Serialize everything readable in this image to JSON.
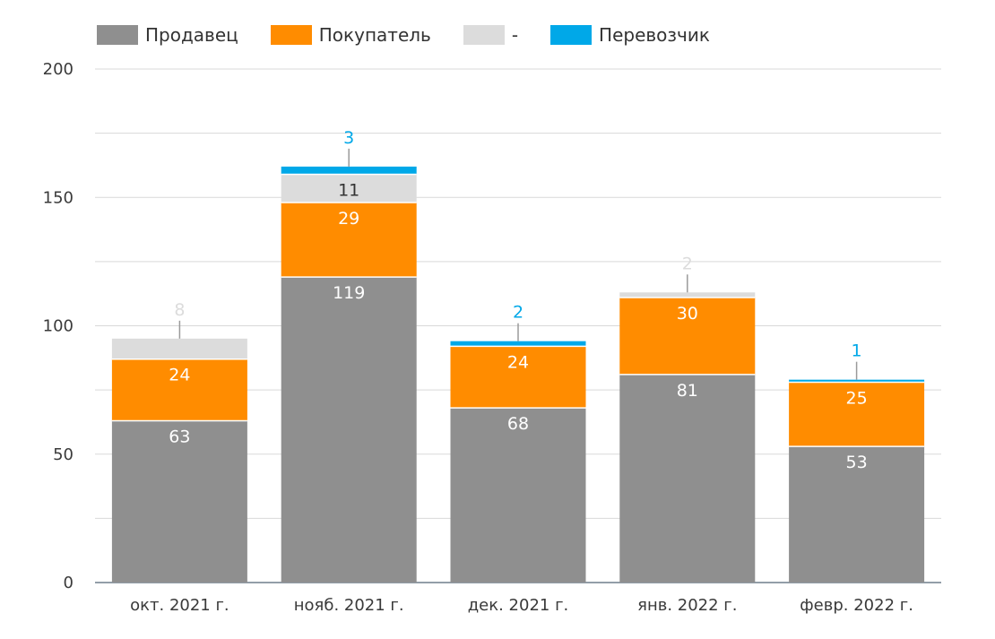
{
  "chart_data": {
    "type": "bar",
    "stacked": true,
    "categories": [
      "окт. 2021 г.",
      "нояб. 2021 г.",
      "дек. 2021 г.",
      "янв. 2022 г.",
      "февр. 2022 г."
    ],
    "series": [
      {
        "name": "Продавец",
        "color": "#8f8f8f",
        "values": [
          63,
          119,
          68,
          81,
          53
        ],
        "label_color": "#ffffff"
      },
      {
        "name": "Покупатель",
        "color": "#ff8c00",
        "values": [
          24,
          29,
          24,
          30,
          25
        ],
        "label_color": "#ffffff"
      },
      {
        "name": "-",
        "color": "#dcdcdc",
        "values": [
          8,
          11,
          null,
          2,
          null
        ],
        "label_color": "#dcdcdc"
      },
      {
        "name": "Перевозчик",
        "color": "#00a8e8",
        "values": [
          null,
          3,
          2,
          null,
          1
        ],
        "label_color": "#00a8e8"
      }
    ],
    "y_ticks": [
      "0",
      "50",
      "100",
      "150",
      "200"
    ],
    "ylim": [
      0,
      200
    ],
    "grid": true,
    "legend_position": "top-left",
    "title": "",
    "xlabel": "",
    "ylabel": ""
  }
}
